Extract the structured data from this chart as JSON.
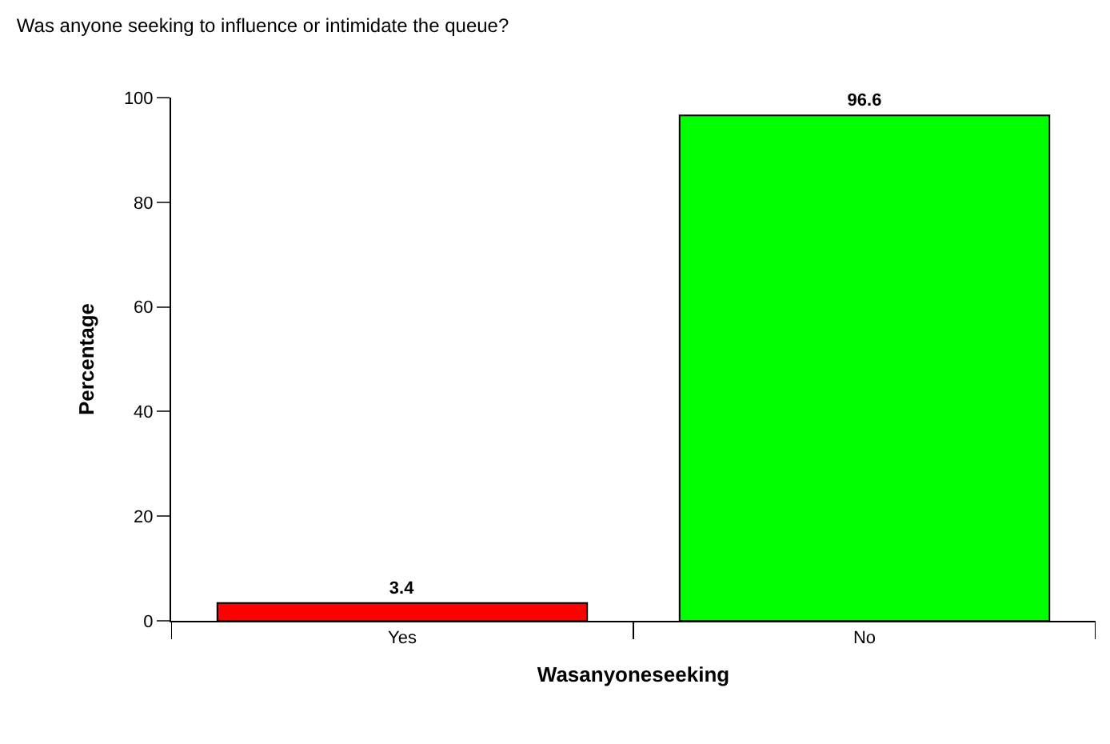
{
  "chart_data": {
    "type": "bar",
    "title": "Was anyone seeking to influence or intimidate the queue?",
    "xlabel": "Wasanyoneseeking",
    "ylabel": "Percentage",
    "categories": [
      "Yes",
      "No"
    ],
    "values": [
      3.4,
      96.6
    ],
    "colors": [
      "#ff0000",
      "#00ff00"
    ],
    "ylim": [
      0,
      100
    ],
    "yticks": [
      0,
      20,
      40,
      60,
      80,
      100
    ],
    "data_labels": true
  }
}
